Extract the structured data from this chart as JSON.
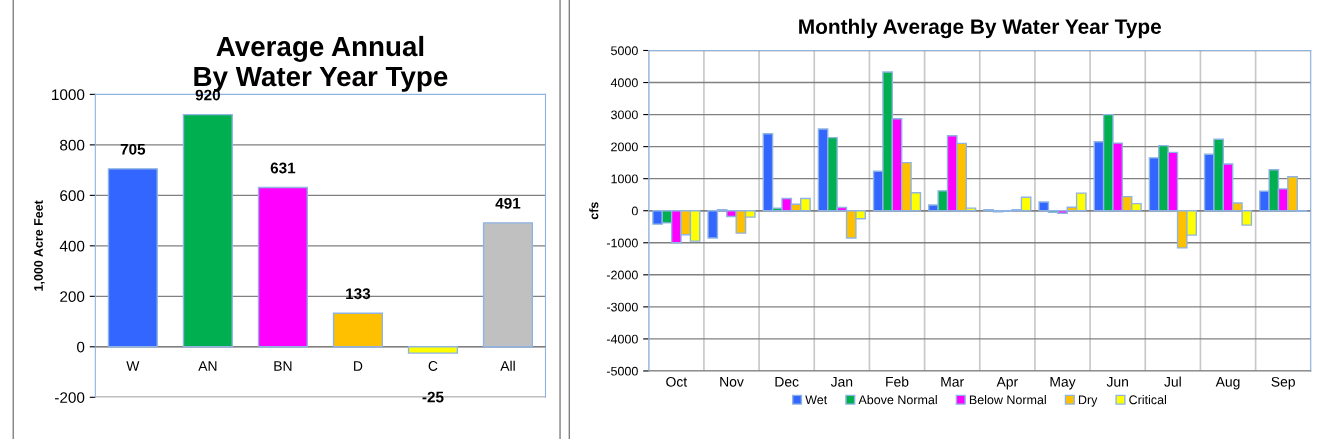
{
  "chart_data": [
    {
      "type": "bar",
      "title": "Average Annual\nBy Water Year Type",
      "ylabel": "1,000 Acre Feet",
      "categories": [
        "W",
        "AN",
        "BN",
        "D",
        "C",
        "All"
      ],
      "values": [
        705,
        920,
        631,
        133,
        -25,
        491
      ],
      "colors": [
        "#3366ff",
        "#00b050",
        "#ff00ff",
        "#ffc000",
        "#ffff00",
        "#c0c0c0"
      ],
      "ylim": [
        -200,
        1000
      ],
      "yticks": [
        -200,
        0,
        200,
        400,
        600,
        800,
        1000
      ],
      "grid": "y",
      "data_labels": true
    },
    {
      "type": "bar",
      "title": "Monthly Average By Water Year Type",
      "ylabel": "cfs",
      "categories": [
        "Oct",
        "Nov",
        "Dec",
        "Jan",
        "Feb",
        "Mar",
        "Apr",
        "May",
        "Jun",
        "Jul",
        "Aug",
        "Sep"
      ],
      "series": [
        {
          "name": "Wet",
          "color": "#3366ff",
          "values": [
            -420,
            -850,
            2400,
            2550,
            1230,
            180,
            30,
            270,
            2150,
            1650,
            1760,
            610
          ]
        },
        {
          "name": "Above Normal",
          "color": "#00b050",
          "values": [
            -380,
            30,
            80,
            2280,
            4330,
            620,
            -30,
            -50,
            3000,
            2030,
            2230,
            1280
          ]
        },
        {
          "name": "Below Normal",
          "color": "#ff00ff",
          "values": [
            -1000,
            -180,
            380,
            100,
            2870,
            2340,
            -20,
            -80,
            2110,
            1820,
            1460,
            680
          ]
        },
        {
          "name": "Dry",
          "color": "#ffc000",
          "values": [
            -750,
            -700,
            200,
            -850,
            1500,
            2100,
            30,
            110,
            440,
            -1160,
            240,
            1060
          ]
        },
        {
          "name": "Critical",
          "color": "#ffff00",
          "values": [
            -950,
            -200,
            380,
            -250,
            560,
            80,
            420,
            550,
            220,
            -760,
            -450,
            -20
          ]
        }
      ],
      "ylim": [
        -5000,
        5000
      ],
      "yticks": [
        -5000,
        -4000,
        -3000,
        -2000,
        -1000,
        0,
        1000,
        2000,
        3000,
        4000,
        5000
      ],
      "grid": true,
      "legend": "bottom"
    }
  ]
}
